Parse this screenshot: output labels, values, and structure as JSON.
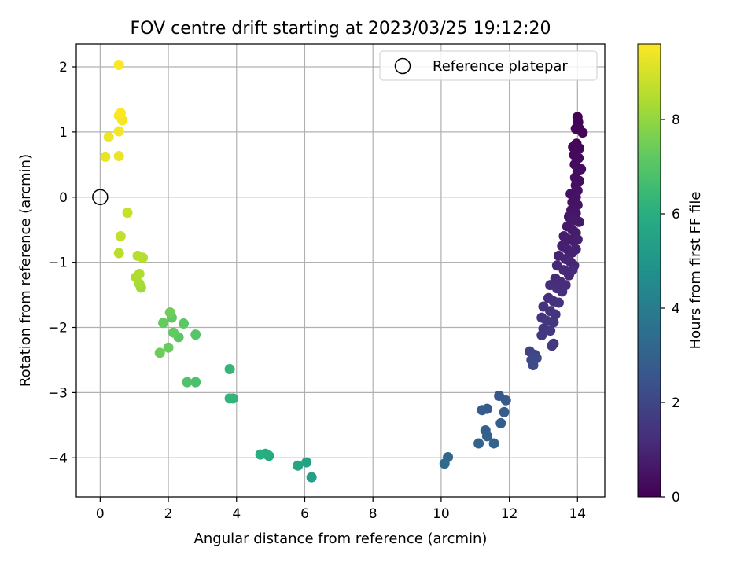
{
  "chart_data": {
    "type": "scatter",
    "title": "FOV centre drift starting at 2023/03/25 19:12:20",
    "xlabel": "Angular distance from reference (arcmin)",
    "ylabel": "Rotation from reference (arcmin)",
    "colorbar_label": "Hours from first FF file",
    "xlim": [
      -0.7,
      14.8
    ],
    "ylim": [
      -4.6,
      2.35
    ],
    "clim": [
      0,
      9.6
    ],
    "x_ticks": [
      0,
      2,
      4,
      6,
      8,
      10,
      12,
      14
    ],
    "y_ticks": [
      -4,
      -3,
      -2,
      -1,
      0,
      1,
      2
    ],
    "colorbar_ticks": [
      0,
      2,
      4,
      6,
      8
    ],
    "grid": true,
    "colormap": "viridis",
    "legend": {
      "position": "top-right",
      "entries": [
        "Reference platepar"
      ]
    },
    "reference_point": {
      "x": 0,
      "y": 0,
      "marker": "open-circle"
    },
    "points": [
      [
        14.0,
        1.23,
        0.03
      ],
      [
        14.02,
        1.15,
        0.05
      ],
      [
        13.95,
        1.05,
        0.08
      ],
      [
        14.05,
        1.05,
        0.1
      ],
      [
        14.15,
        0.99,
        0.12
      ],
      [
        13.87,
        0.77,
        0.15
      ],
      [
        13.97,
        0.82,
        0.17
      ],
      [
        14.05,
        0.75,
        0.2
      ],
      [
        13.9,
        0.65,
        0.22
      ],
      [
        14.03,
        0.6,
        0.25
      ],
      [
        13.92,
        0.5,
        0.28
      ],
      [
        14.1,
        0.43,
        0.3
      ],
      [
        14.0,
        0.4,
        0.33
      ],
      [
        13.93,
        0.3,
        0.35
      ],
      [
        14.05,
        0.25,
        0.38
      ],
      [
        13.95,
        0.18,
        0.4
      ],
      [
        14.0,
        0.1,
        0.43
      ],
      [
        13.8,
        0.05,
        0.45
      ],
      [
        13.95,
        0.0,
        0.48
      ],
      [
        13.85,
        -0.08,
        0.5
      ],
      [
        14.0,
        -0.12,
        0.53
      ],
      [
        13.82,
        -0.2,
        0.55
      ],
      [
        13.95,
        -0.25,
        0.58
      ],
      [
        13.75,
        -0.3,
        0.6
      ],
      [
        13.9,
        -0.35,
        0.63
      ],
      [
        14.05,
        -0.38,
        0.65
      ],
      [
        13.7,
        -0.45,
        0.68
      ],
      [
        13.85,
        -0.5,
        0.7
      ],
      [
        13.95,
        -0.55,
        0.73
      ],
      [
        13.6,
        -0.6,
        0.75
      ],
      [
        13.75,
        -0.65,
        0.78
      ],
      [
        13.9,
        -0.68,
        0.8
      ],
      [
        14.0,
        -0.65,
        0.83
      ],
      [
        13.55,
        -0.75,
        0.85
      ],
      [
        13.7,
        -0.8,
        0.88
      ],
      [
        13.85,
        -0.85,
        0.9
      ],
      [
        13.95,
        -0.8,
        0.93
      ],
      [
        13.45,
        -0.9,
        0.95
      ],
      [
        13.65,
        -0.95,
        0.98
      ],
      [
        13.8,
        -1.0,
        1.0
      ],
      [
        13.9,
        -1.05,
        1.03
      ],
      [
        13.4,
        -1.05,
        1.05
      ],
      [
        13.6,
        -1.12,
        1.08
      ],
      [
        13.75,
        -1.2,
        1.1
      ],
      [
        13.85,
        -1.12,
        1.13
      ],
      [
        13.35,
        -1.25,
        1.15
      ],
      [
        13.5,
        -1.3,
        1.18
      ],
      [
        13.65,
        -1.35,
        1.2
      ],
      [
        13.2,
        -1.35,
        1.23
      ],
      [
        13.4,
        -1.4,
        1.25
      ],
      [
        13.55,
        -1.45,
        1.28
      ],
      [
        13.15,
        -1.55,
        1.3
      ],
      [
        13.3,
        -1.6,
        1.33
      ],
      [
        13.45,
        -1.62,
        1.35
      ],
      [
        13.0,
        -1.68,
        1.38
      ],
      [
        13.2,
        -1.75,
        1.4
      ],
      [
        13.35,
        -1.8,
        1.43
      ],
      [
        12.95,
        -1.85,
        1.45
      ],
      [
        13.1,
        -1.9,
        1.48
      ],
      [
        13.3,
        -1.92,
        1.5
      ],
      [
        13.0,
        -2.02,
        1.53
      ],
      [
        13.2,
        -2.05,
        1.55
      ],
      [
        12.95,
        -2.12,
        1.58
      ],
      [
        13.3,
        -2.25,
        1.6
      ],
      [
        13.25,
        -2.28,
        1.63
      ],
      [
        12.6,
        -2.37,
        1.9
      ],
      [
        12.75,
        -2.42,
        2.0
      ],
      [
        12.65,
        -2.5,
        2.1
      ],
      [
        12.8,
        -2.47,
        2.15
      ],
      [
        12.7,
        -2.58,
        2.2
      ],
      [
        11.7,
        -3.05,
        2.6
      ],
      [
        11.9,
        -3.12,
        2.65
      ],
      [
        11.35,
        -3.25,
        2.7
      ],
      [
        11.2,
        -3.27,
        2.75
      ],
      [
        11.85,
        -3.3,
        2.8
      ],
      [
        11.75,
        -3.47,
        2.85
      ],
      [
        11.3,
        -3.58,
        2.9
      ],
      [
        11.35,
        -3.67,
        2.95
      ],
      [
        11.1,
        -3.78,
        3.0
      ],
      [
        11.55,
        -3.78,
        3.05
      ],
      [
        10.2,
        -3.99,
        3.2
      ],
      [
        10.1,
        -4.09,
        3.3
      ],
      [
        6.2,
        -4.3,
        5.4
      ],
      [
        6.05,
        -4.07,
        5.5
      ],
      [
        5.8,
        -4.12,
        5.6
      ],
      [
        4.95,
        -3.97,
        5.8
      ],
      [
        4.85,
        -3.94,
        5.9
      ],
      [
        4.7,
        -3.95,
        6.0
      ],
      [
        3.9,
        -3.09,
        6.2
      ],
      [
        3.8,
        -3.09,
        6.25
      ],
      [
        3.8,
        -2.64,
        6.3
      ],
      [
        2.8,
        -2.84,
        6.8
      ],
      [
        2.55,
        -2.84,
        6.9
      ],
      [
        2.8,
        -2.11,
        7.0
      ],
      [
        2.3,
        -2.15,
        7.1
      ],
      [
        2.45,
        -1.94,
        7.15
      ],
      [
        2.1,
        -1.85,
        7.2
      ],
      [
        2.15,
        -2.08,
        7.25
      ],
      [
        1.85,
        -1.93,
        7.3
      ],
      [
        2.0,
        -2.31,
        7.35
      ],
      [
        1.75,
        -2.39,
        7.4
      ],
      [
        2.05,
        -1.77,
        7.45
      ],
      [
        1.2,
        -1.39,
        8.2
      ],
      [
        1.15,
        -1.33,
        8.3
      ],
      [
        1.05,
        -1.23,
        8.4
      ],
      [
        1.15,
        -1.18,
        8.45
      ],
      [
        1.25,
        -0.93,
        8.5
      ],
      [
        1.1,
        -0.9,
        8.55
      ],
      [
        0.55,
        -0.86,
        8.6
      ],
      [
        0.6,
        -0.6,
        8.7
      ],
      [
        0.8,
        -0.24,
        8.8
      ],
      [
        0.15,
        0.62,
        9.3
      ],
      [
        0.55,
        0.63,
        9.35
      ],
      [
        0.25,
        0.92,
        9.4
      ],
      [
        0.55,
        1.01,
        9.45
      ],
      [
        0.65,
        1.18,
        9.5
      ],
      [
        0.55,
        1.25,
        9.52
      ],
      [
        0.6,
        1.29,
        9.55
      ],
      [
        0.55,
        2.03,
        9.58
      ]
    ]
  }
}
